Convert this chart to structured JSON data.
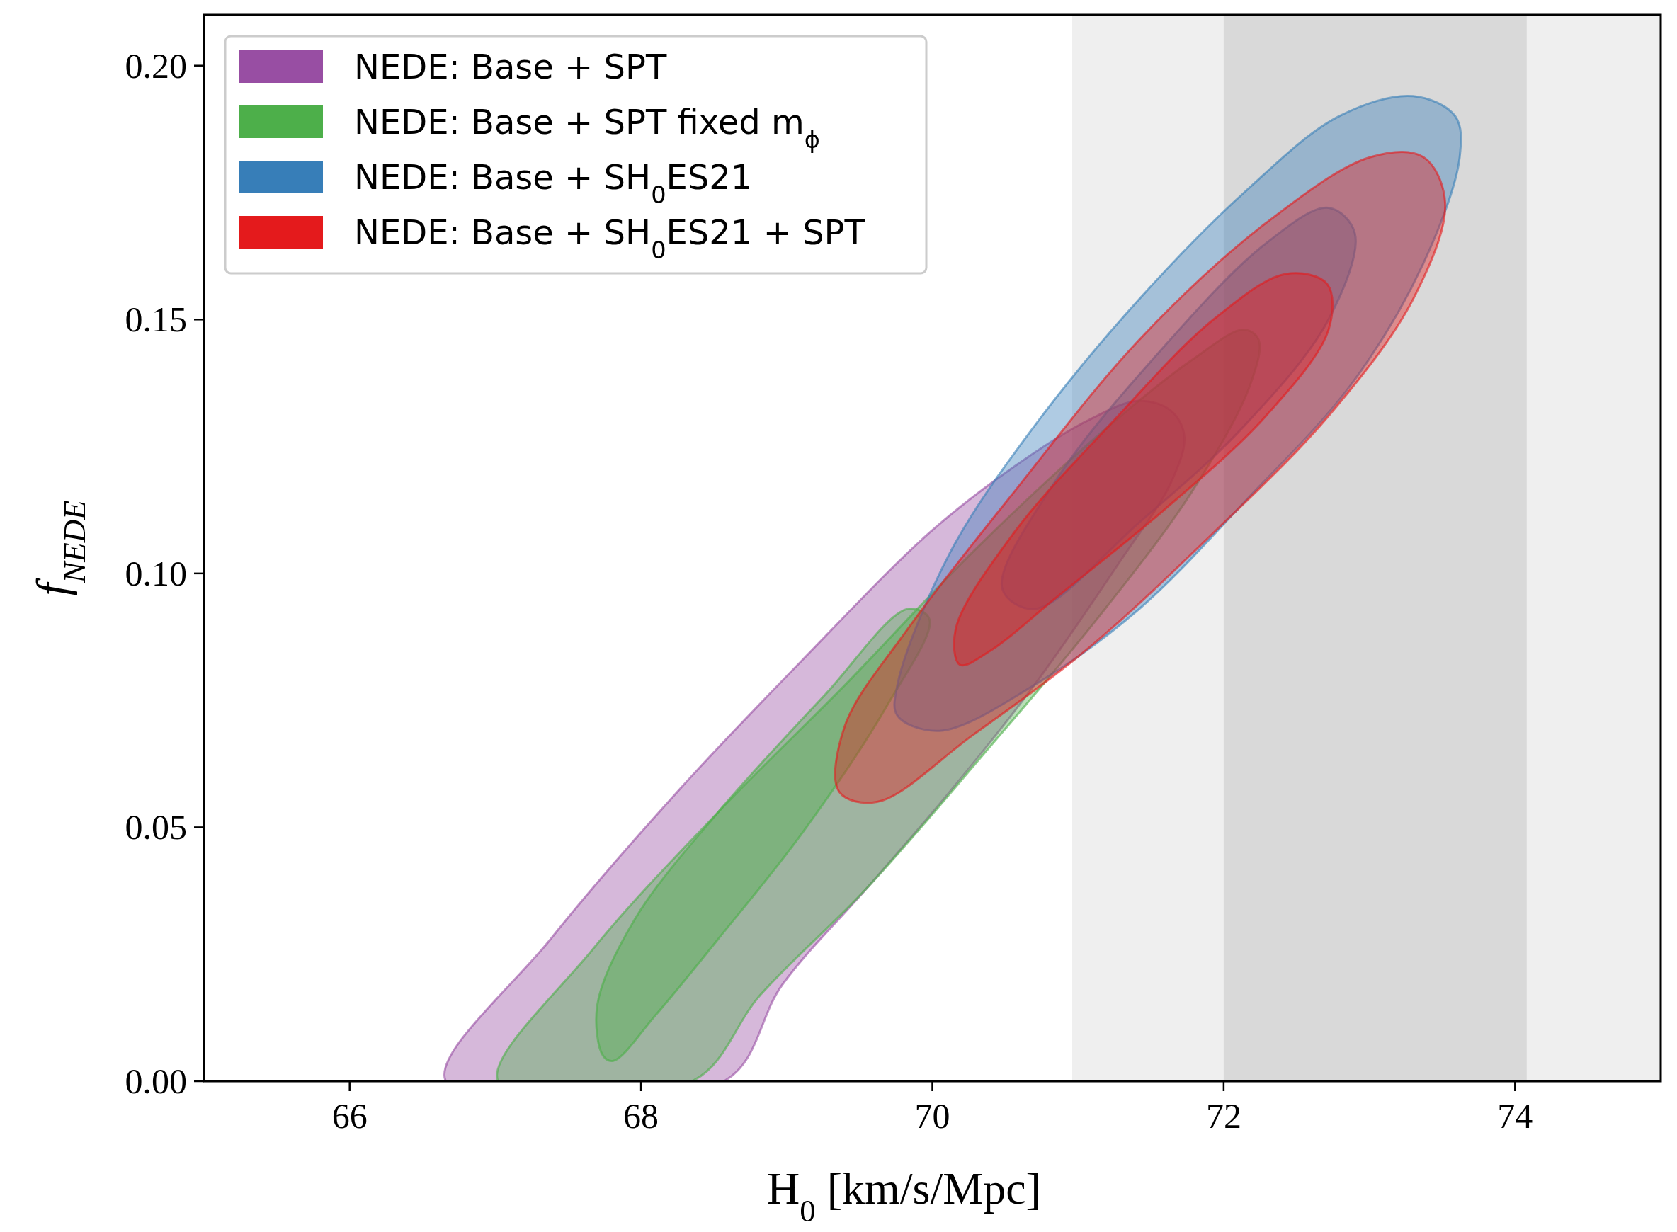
{
  "chart_data": {
    "type": "area",
    "xlabel": "H$_{0}$  [km/s/Mpc]",
    "ylabel": "f$_{NEDE}$",
    "xlim": [
      65,
      75
    ],
    "ylim": [
      0,
      0.21
    ],
    "xticks": [
      66,
      68,
      70,
      72,
      74
    ],
    "yticks": [
      {
        "value": 0,
        "label": "0.00"
      },
      {
        "value": 0.05,
        "label": "0.05"
      },
      {
        "value": 0.1,
        "label": "0.10"
      },
      {
        "value": 0.15,
        "label": "0.15"
      },
      {
        "value": 0.2,
        "label": "0.20"
      }
    ],
    "bands": [
      {
        "axis": "x",
        "from": 70.96,
        "to": 75.12,
        "color": "#efefef"
      },
      {
        "axis": "x",
        "from": 72.0,
        "to": 74.08,
        "color": "#d9d9d9"
      }
    ],
    "legend": "top left",
    "grid": false,
    "series": [
      {
        "name": "NEDE: Base + SPT",
        "color": "#984ea3",
        "x": [
          66.66,
          67.38,
          68.25,
          69.11,
          69.98,
          70.56,
          71.06,
          71.42,
          71.64,
          71.73,
          71.64,
          71.28,
          70.7,
          70.12,
          69.55,
          68.97,
          68.57
        ],
        "values": [
          0,
          0.028,
          0.057,
          0.083,
          0.108,
          0.121,
          0.13,
          0.134,
          0.132,
          0.127,
          0.118,
          0.102,
          0.078,
          0.057,
          0.038,
          0.019,
          0
        ]
      },
      {
        "name": "NEDE: Base + SPT fixed m$_{ϕ}$",
        "color": "#4daf4a",
        "x": [
          67.02,
          67.67,
          68.53,
          69.4,
          70.27,
          71.13,
          71.78,
          72.14,
          72.24,
          72.18,
          71.78,
          71.13,
          70.34,
          69.55,
          68.82,
          68.35
        ],
        "values": [
          0,
          0.026,
          0.053,
          0.078,
          0.104,
          0.127,
          0.142,
          0.148,
          0.146,
          0.137,
          0.116,
          0.091,
          0.064,
          0.038,
          0.017,
          0
        ]
      },
      {
        "color": "#4daf4a",
        "x": [
          67.74,
          67.7,
          67.96,
          68.53,
          69.26,
          69.83,
          69.98,
          69.69,
          69.11,
          68.53,
          68.1,
          67.81
        ],
        "values": [
          0.005,
          0.015,
          0.032,
          0.053,
          0.076,
          0.093,
          0.091,
          0.074,
          0.049,
          0.028,
          0.013,
          0.004
        ]
      },
      {
        "name": "NEDE: Base + SH$_{0}$ES21",
        "color": "#377eb8",
        "x": [
          69.76,
          70.12,
          70.7,
          71.42,
          72.14,
          72.79,
          73.3,
          73.59,
          73.62,
          73.37,
          72.87,
          72.14,
          71.42,
          70.7,
          70.05,
          69.76
        ],
        "values": [
          0.078,
          0.104,
          0.129,
          0.154,
          0.175,
          0.19,
          0.194,
          0.19,
          0.182,
          0.161,
          0.137,
          0.114,
          0.093,
          0.078,
          0.069,
          0.072
        ]
      },
      {
        "color": "#377eb8",
        "x": [
          70.48,
          70.84,
          71.57,
          72.29,
          72.72,
          72.9,
          72.72,
          72.14,
          71.42,
          70.7
        ],
        "values": [
          0.097,
          0.118,
          0.144,
          0.165,
          0.172,
          0.167,
          0.15,
          0.129,
          0.11,
          0.093
        ]
      },
      {
        "name": "NEDE: Base + SH$_{0}$ES21 + SPT",
        "color": "#e41a1c",
        "x": [
          69.36,
          69.4,
          69.83,
          70.56,
          71.42,
          72.29,
          73.01,
          73.37,
          73.52,
          73.3,
          72.72,
          71.93,
          71.06,
          70.27,
          69.62
        ],
        "values": [
          0.057,
          0.07,
          0.089,
          0.116,
          0.146,
          0.169,
          0.182,
          0.182,
          0.173,
          0.154,
          0.131,
          0.108,
          0.085,
          0.068,
          0.055
        ]
      },
      {
        "color": "#e41a1c",
        "x": [
          70.19,
          70.16,
          70.56,
          71.21,
          71.93,
          72.43,
          72.71,
          72.72,
          72.29,
          71.57,
          70.84,
          70.41
        ],
        "values": [
          0.082,
          0.089,
          0.108,
          0.129,
          0.15,
          0.159,
          0.157,
          0.148,
          0.131,
          0.112,
          0.095,
          0.085
        ]
      }
    ]
  }
}
